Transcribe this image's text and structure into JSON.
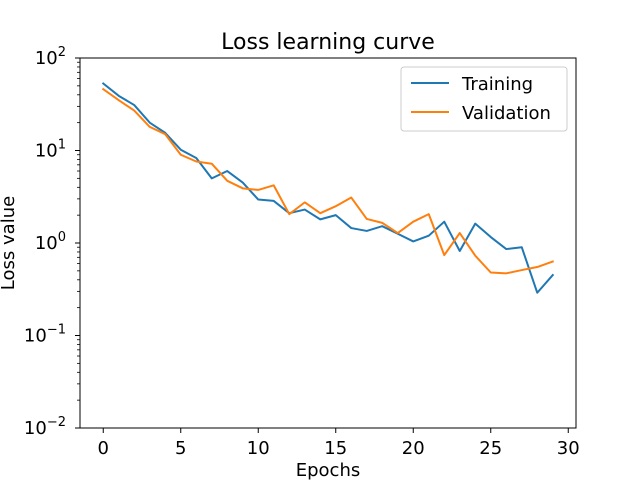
{
  "chart_data": {
    "type": "line",
    "title": "Loss learning curve",
    "xlabel": "Epochs",
    "ylabel": "Loss value",
    "xlim": [
      -1.5,
      30.5
    ],
    "ylim": [
      0.01,
      100
    ],
    "yscale": "log",
    "grid": false,
    "legend_position": "top-right",
    "x_ticks": [
      0,
      5,
      10,
      15,
      20,
      25,
      30
    ],
    "x_tick_labels": [
      "0",
      "5",
      "10",
      "15",
      "20",
      "25",
      "30"
    ],
    "y_ticks": [
      {
        "value": 0.01,
        "base": "10",
        "exp": "−2"
      },
      {
        "value": 0.1,
        "base": "10",
        "exp": "−1"
      },
      {
        "value": 1,
        "base": "10",
        "exp": "0"
      },
      {
        "value": 10,
        "base": "10",
        "exp": "1"
      },
      {
        "value": 100,
        "base": "10",
        "exp": "2"
      }
    ],
    "x": [
      0,
      1,
      2,
      3,
      4,
      5,
      6,
      7,
      8,
      9,
      10,
      11,
      12,
      13,
      14,
      15,
      16,
      17,
      18,
      19,
      20,
      21,
      22,
      23,
      24,
      25,
      26,
      27,
      28,
      29
    ],
    "series": [
      {
        "name": "Training",
        "color": "#1f77b4",
        "values": [
          53,
          39,
          31,
          20,
          15.5,
          10.2,
          8.3,
          5.0,
          6.0,
          4.5,
          2.95,
          2.85,
          2.1,
          2.3,
          1.8,
          2.0,
          1.45,
          1.35,
          1.52,
          1.26,
          1.04,
          1.2,
          1.7,
          0.82,
          1.62,
          1.16,
          0.86,
          0.9,
          0.29,
          0.45
        ]
      },
      {
        "name": "Validation",
        "color": "#ff7f0e",
        "values": [
          46,
          35,
          27,
          18,
          15,
          9.0,
          7.6,
          7.2,
          4.7,
          3.9,
          3.75,
          4.2,
          2.05,
          2.75,
          2.1,
          2.5,
          3.1,
          1.82,
          1.65,
          1.28,
          1.7,
          2.05,
          0.74,
          1.28,
          0.73,
          0.48,
          0.47,
          0.51,
          0.55,
          0.63
        ]
      }
    ]
  }
}
